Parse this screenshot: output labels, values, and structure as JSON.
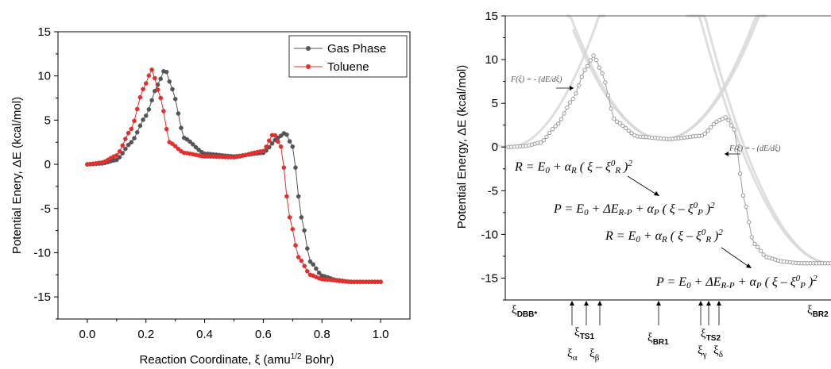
{
  "chart_data": [
    {
      "type": "line",
      "title": "",
      "xlabel": "Reaction Coordinate, ξ (amu1/2 Bohr)",
      "xlabel_main": "Reaction Coordinate, ξ (amu",
      "xlabel_sup": "1/2",
      "xlabel_end": " Bohr)",
      "ylabel": "Potential Enery, ΔE (kcal/mol)",
      "xlim": [
        -0.1,
        1.1
      ],
      "ylim": [
        -17.5,
        15
      ],
      "xticks": [
        "0.0",
        "0.2",
        "0.4",
        "0.6",
        "0.8",
        "1.0"
      ],
      "yticks": [
        "15",
        "10",
        "5",
        "0",
        "-5",
        "-10",
        "-15"
      ],
      "legend_position": "top-right",
      "series": [
        {
          "name": "Gas Phase",
          "color": "#555555",
          "x": [
            0.0,
            0.05,
            0.1,
            0.15,
            0.2,
            0.24,
            0.265,
            0.29,
            0.33,
            0.4,
            0.5,
            0.6,
            0.65,
            0.675,
            0.7,
            0.73,
            0.76,
            0.8,
            0.85,
            0.9,
            1.0
          ],
          "y": [
            0.0,
            0.1,
            0.5,
            2.5,
            5.5,
            9.0,
            10.8,
            8.5,
            3.0,
            1.2,
            0.9,
            1.3,
            3.0,
            3.6,
            2.0,
            -6.0,
            -11.0,
            -12.6,
            -13.1,
            -13.3,
            -13.3
          ]
        },
        {
          "name": "Toluene",
          "color": "#e03030",
          "x": [
            0.0,
            0.05,
            0.1,
            0.15,
            0.19,
            0.22,
            0.25,
            0.28,
            0.33,
            0.4,
            0.5,
            0.6,
            0.635,
            0.66,
            0.69,
            0.72,
            0.76,
            0.8,
            0.9,
            1.0
          ],
          "y": [
            0.0,
            0.2,
            1.0,
            4.0,
            8.5,
            10.7,
            7.5,
            2.5,
            1.3,
            0.9,
            0.8,
            1.5,
            3.5,
            2.0,
            -6.0,
            -10.5,
            -12.5,
            -13.0,
            -13.3,
            -13.3
          ]
        }
      ]
    },
    {
      "type": "line",
      "title": "",
      "ylabel": "Potential Energy, ΔE (kcal/mol)",
      "ylim": [
        -17.5,
        15
      ],
      "yticks": [
        "15",
        "10",
        "5",
        "0",
        "-5",
        "-10",
        "-15"
      ],
      "series": [
        {
          "name": "",
          "color": "#9a9a9a",
          "x": [
            0.0,
            0.05,
            0.1,
            0.15,
            0.2,
            0.24,
            0.265,
            0.29,
            0.33,
            0.4,
            0.5,
            0.6,
            0.65,
            0.675,
            0.7,
            0.73,
            0.76,
            0.8,
            0.85,
            0.9,
            1.0
          ],
          "y": [
            0.0,
            0.1,
            0.5,
            2.5,
            5.5,
            9.0,
            10.5,
            8.5,
            3.0,
            1.2,
            0.9,
            1.3,
            3.0,
            3.4,
            2.0,
            -6.0,
            -11.0,
            -12.6,
            -13.1,
            -13.3,
            -13.3
          ]
        }
      ],
      "annotations": {
        "force_left": "F(ξ) = - (dE/dξ)",
        "force_right": "F(ξ) = - (dE/dξ)",
        "eq_r1": "R = E0 + αR ( ξ – ξ0R )2",
        "eq_p1": "P = E0 + ΔER-P + αP ( ξ – ξ0P )2",
        "eq_r2": "R = E0 + αR ( ξ – ξ0R )2",
        "eq_p2": "P = E0 + ΔER-P + αP ( ξ – ξ0P )2",
        "xi_symbol": "ξ",
        "alpha": "α",
        "beta": "β",
        "gamma": "γ",
        "delta": "δ",
        "sub_dbb": "DBB*",
        "sub_ts1": "TS1",
        "sub_br1": "BR1",
        "sub_ts2": "TS2",
        "sub_br2": "BR2"
      }
    }
  ]
}
